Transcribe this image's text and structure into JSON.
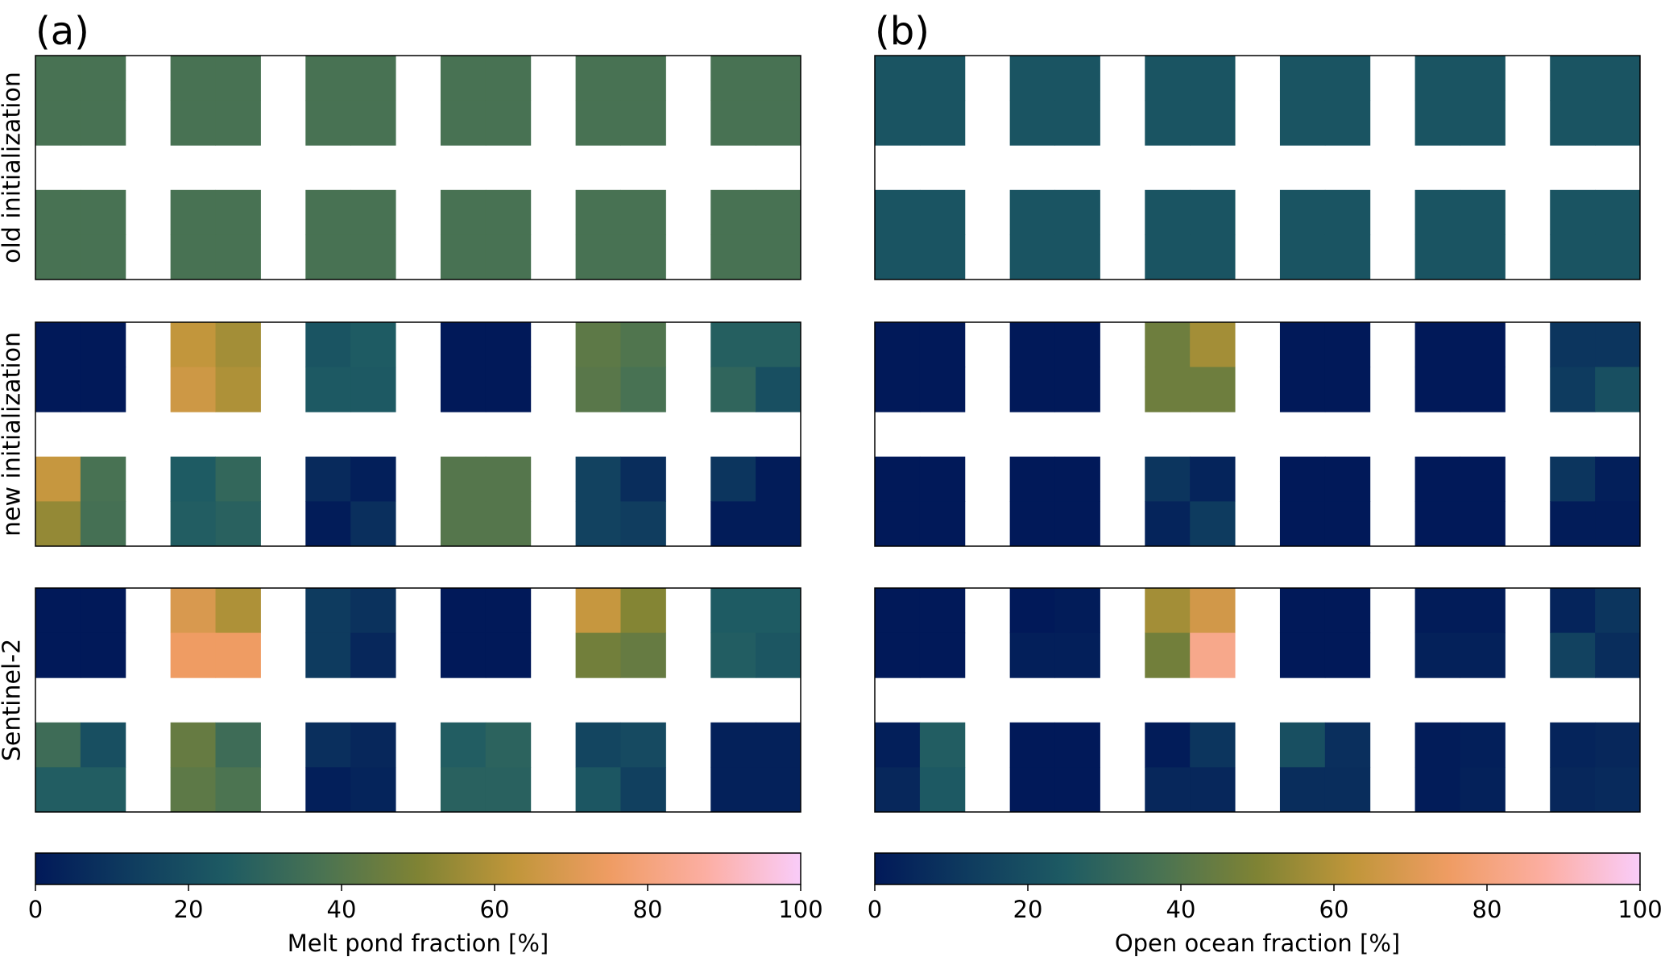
{
  "chart_data": [
    {
      "type": "heatmap",
      "title": "(a)",
      "colormap": [
        "#011959",
        "#0f3c5f",
        "#1e5b63",
        "#4a7352",
        "#7f8334",
        "#c0963a",
        "#ef9c63",
        "#fcaea2",
        "#f9ccf9"
      ],
      "heatmaps": [
        {
          "label": "old initialization",
          "values": [
            [
              37,
              37,
              37,
              37,
              37,
              37,
              37,
              37,
              37,
              37,
              37,
              37
            ],
            [
              37,
              37,
              37,
              37,
              37,
              37,
              37,
              37,
              37,
              37,
              37,
              37
            ],
            [
              37,
              37,
              37,
              37,
              37,
              37,
              37,
              37,
              37,
              37,
              37,
              37
            ],
            [
              37,
              37,
              37,
              37,
              37,
              37,
              37,
              37,
              37,
              37,
              37,
              37
            ]
          ]
        },
        {
          "label": "new initialization",
          "values": [
            [
              0,
              0,
              63,
              57,
              22,
              25,
              0,
              0,
              42,
              39,
              27,
              27
            ],
            [
              0,
              0,
              66,
              59,
              24,
              24,
              0,
              0,
              41,
              37,
              30,
              20
            ],
            [
              64,
              37,
              25,
              31,
              6,
              2,
              40,
              40,
              15,
              7,
              10,
              1
            ],
            [
              54,
              36,
              26,
              28,
              1,
              8,
              40,
              40,
              15,
              13,
              1,
              1
            ]
          ]
        },
        {
          "label": "Sentinel-2",
          "values": [
            [
              0,
              0,
              69,
              59,
              12,
              9,
              0,
              0,
              64,
              51,
              25,
              25
            ],
            [
              0,
              0,
              75,
              75,
              12,
              5,
              0,
              0,
              47,
              44,
              26,
              23
            ],
            [
              34,
              20,
              44,
              34,
              8,
              5,
              26,
              29,
              16,
              18,
              3,
              3
            ],
            [
              26,
              26,
              42,
              38,
              2,
              4,
              28,
              28,
              23,
              14,
              3,
              3
            ]
          ]
        }
      ],
      "colorbar": {
        "label": "Melt pond fraction [%]",
        "lim": [
          0,
          100
        ],
        "ticks": [
          0,
          20,
          40,
          60,
          80,
          100
        ]
      }
    },
    {
      "type": "heatmap",
      "title": "(b)",
      "colormap": [
        "#011959",
        "#0f3c5f",
        "#1e5b63",
        "#4a7352",
        "#7f8334",
        "#c0963a",
        "#ef9c63",
        "#fcaea2",
        "#f9ccf9"
      ],
      "heatmaps": [
        {
          "values": [
            [
              22,
              22,
              22,
              22,
              22,
              22,
              22,
              22,
              22,
              22,
              22,
              22
            ],
            [
              22,
              22,
              22,
              22,
              22,
              22,
              22,
              22,
              22,
              22,
              22,
              22
            ],
            [
              22,
              22,
              22,
              22,
              22,
              22,
              22,
              22,
              22,
              22,
              22,
              22
            ],
            [
              22,
              22,
              22,
              22,
              22,
              22,
              22,
              22,
              22,
              22,
              22,
              22
            ]
          ]
        },
        {
          "values": [
            [
              0,
              0,
              0,
              0,
              46,
              57,
              0,
              0,
              0,
              0,
              10,
              10
            ],
            [
              0,
              0,
              0,
              0,
              46,
              46,
              0,
              0,
              0,
              0,
              12,
              20
            ],
            [
              0,
              0,
              0,
              0,
              10,
              4,
              0,
              0,
              0,
              0,
              10,
              2
            ],
            [
              0,
              0,
              0,
              0,
              4,
              12,
              0,
              0,
              0,
              0,
              1,
              1
            ]
          ]
        },
        {
          "values": [
            [
              0,
              0,
              0,
              1,
              57,
              67,
              0,
              0,
              1,
              1,
              4,
              10
            ],
            [
              0,
              0,
              2,
              2,
              47,
              83,
              0,
              0,
              3,
              3,
              15,
              7
            ],
            [
              2,
              26,
              0,
              0,
              1,
              10,
              20,
              8,
              1,
              2,
              4,
              5
            ],
            [
              5,
              24,
              0,
              0,
              5,
              5,
              7,
              7,
              1,
              3,
              5,
              6
            ]
          ]
        }
      ],
      "colorbar": {
        "label": "Open ocean fraction [%]",
        "lim": [
          0,
          100
        ],
        "ticks": [
          0,
          20,
          40,
          60,
          80,
          100
        ]
      }
    }
  ]
}
